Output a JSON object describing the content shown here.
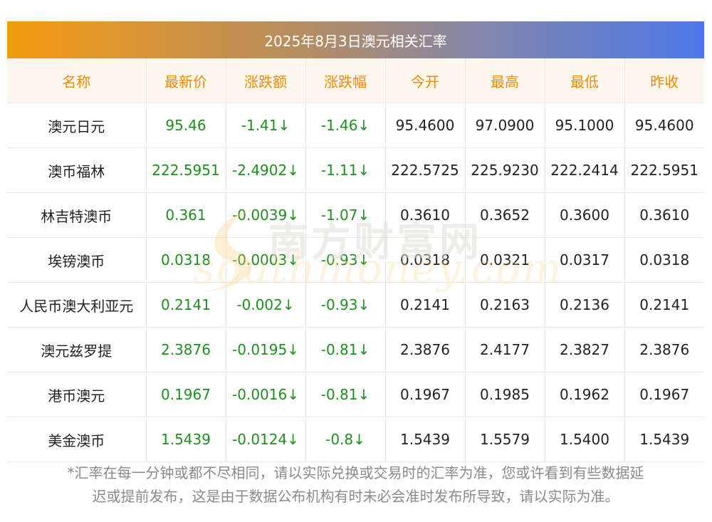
{
  "title": "2025年8月3日澳元相关汇率",
  "headers": [
    "名称",
    "最新价",
    "涨跌额",
    "涨跌幅",
    "今开",
    "最高",
    "最低",
    "昨收"
  ],
  "rows": [
    {
      "name": "澳元日元",
      "latest": "95.46",
      "change": "-1.41↓",
      "change_pct": "-1.46↓",
      "open": "95.4600",
      "high": "97.0900",
      "low": "95.1000",
      "prev_close": "95.4600"
    },
    {
      "name": "澳币福林",
      "latest": "222.5951",
      "change": "-2.4902↓",
      "change_pct": "-1.11↓",
      "open": "222.5725",
      "high": "225.9230",
      "low": "222.2414",
      "prev_close": "222.5951"
    },
    {
      "name": "林吉特澳币",
      "latest": "0.361",
      "change": "-0.0039↓",
      "change_pct": "-1.07↓",
      "open": "0.3610",
      "high": "0.3652",
      "low": "0.3600",
      "prev_close": "0.3610"
    },
    {
      "name": "埃镑澳币",
      "latest": "0.0318",
      "change": "-0.0003↓",
      "change_pct": "-0.93↓",
      "open": "0.0318",
      "high": "0.0321",
      "low": "0.0317",
      "prev_close": "0.0318"
    },
    {
      "name": "人民币澳大利亚元",
      "latest": "0.2141",
      "change": "-0.002↓",
      "change_pct": "-0.93↓",
      "open": "0.2141",
      "high": "0.2163",
      "low": "0.2136",
      "prev_close": "0.2141"
    },
    {
      "name": "澳元兹罗提",
      "latest": "2.3876",
      "change": "-0.0195↓",
      "change_pct": "-0.81↓",
      "open": "2.3876",
      "high": "2.4177",
      "low": "2.3827",
      "prev_close": "2.3876"
    },
    {
      "name": "港币澳元",
      "latest": "0.1967",
      "change": "-0.0016↓",
      "change_pct": "-0.81↓",
      "open": "0.1967",
      "high": "0.1985",
      "low": "0.1962",
      "prev_close": "0.1967"
    },
    {
      "name": "美金澳币",
      "latest": "1.5439",
      "change": "-0.0124↓",
      "change_pct": "-0.8↓",
      "open": "1.5439",
      "high": "1.5579",
      "low": "1.5400",
      "prev_close": "1.5439"
    }
  ],
  "footnote_line1": "*汇率在每一分钟或都不尽相同，请以实际兑换或交易时的汇率为准，您或许看到有些数据延",
  "footnote_line2": "迟或提前发布，这是由于数据公布机构有时未必会准时发布所导致，请以实际为准。",
  "watermark_cn": "南方财富网",
  "watermark_en": "southmoney.com",
  "colors": {
    "header_text": "#f08a00",
    "up_down_text": "#1f8f1f",
    "header_bg": "#fdf8ee"
  }
}
